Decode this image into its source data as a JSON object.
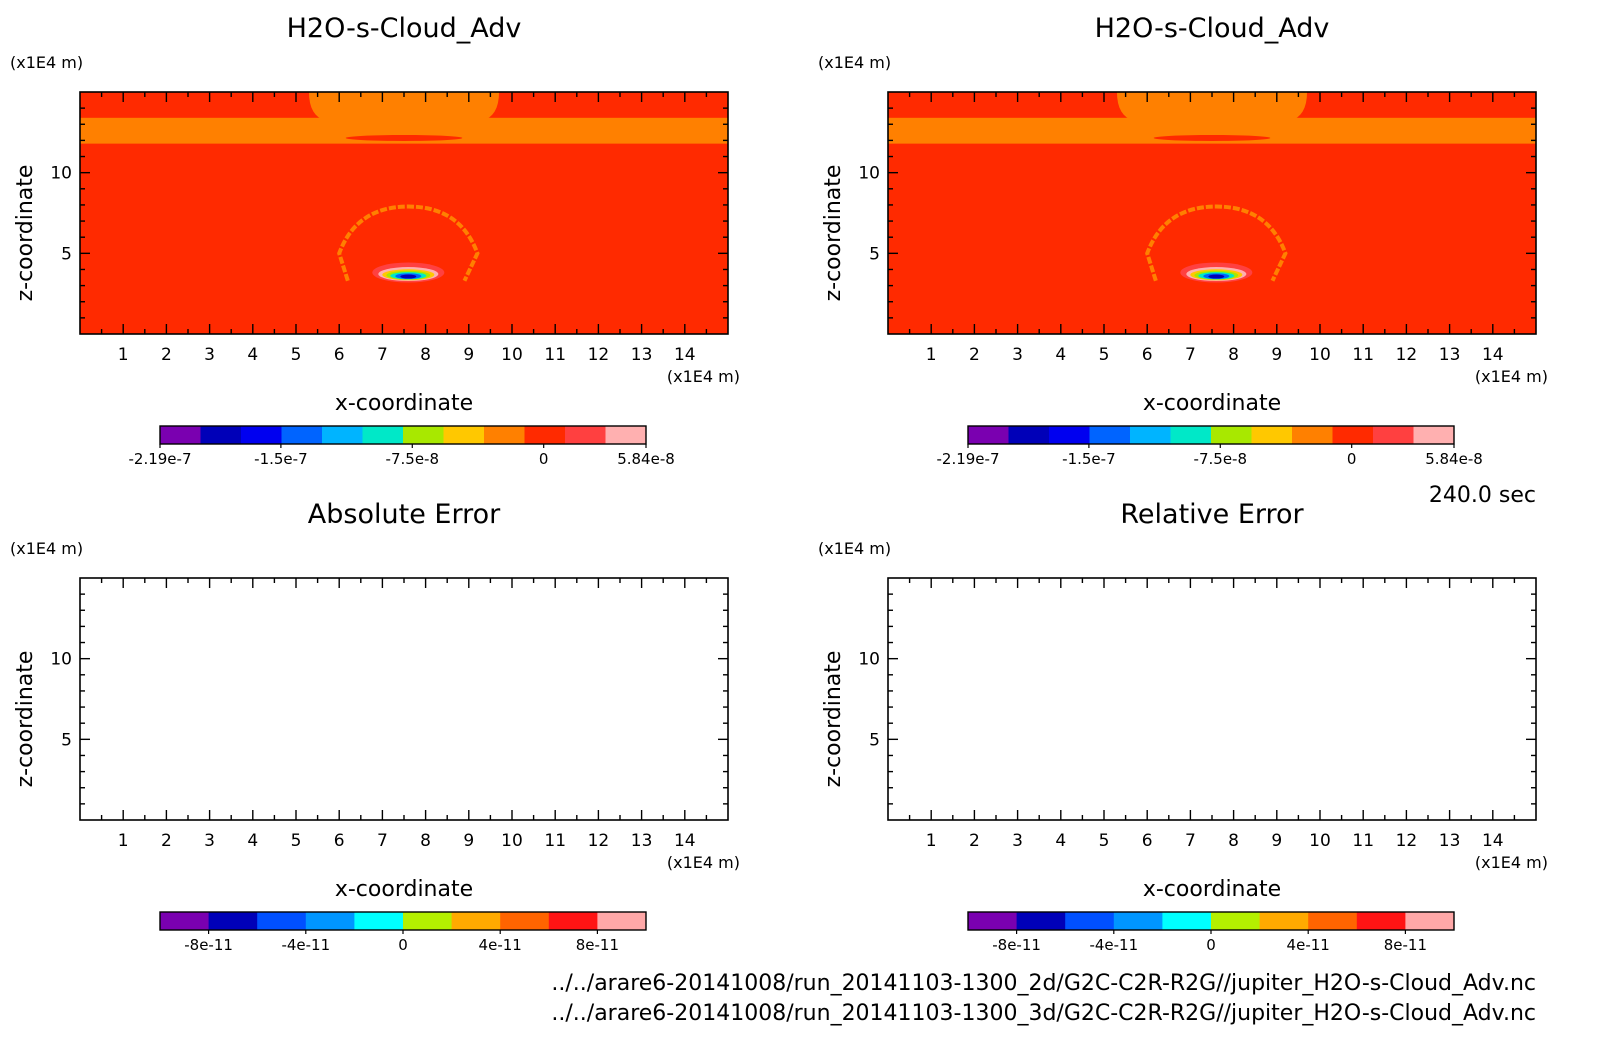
{
  "time_label": "240.0 sec",
  "file_paths": [
    "../../arare6-20141008/run_20141103-1300_2d/G2C-C2R-R2G//jupiter_H2O-s-Cloud_Adv.nc",
    "../../arare6-20141008/run_20141103-1300_3d/G2C-C2R-R2G//jupiter_H2O-s-Cloud_Adv.nc"
  ],
  "colors": {
    "background_field": "#ff2a00",
    "orange_band": "#ff8000",
    "frame": "#000000"
  },
  "chart_data": [
    {
      "type": "heatmap",
      "title": "H2O-s-Cloud_Adv",
      "xlabel": "x-coordinate",
      "ylabel": "z-coordinate",
      "x_unit": "(x1E4 m)",
      "y_unit": "(x1E4 m)",
      "xlim": [
        0,
        15
      ],
      "ylim": [
        0,
        15
      ],
      "x_ticks": [
        "1",
        "2",
        "3",
        "4",
        "5",
        "6",
        "7",
        "8",
        "9",
        "10",
        "11",
        "12",
        "13",
        "14"
      ],
      "y_ticks": [
        "5",
        "10"
      ],
      "colorbar": {
        "tick_labels": [
          "-2.19e-7",
          "-1.5e-7",
          "-7.5e-8",
          "0",
          "5.84e-8"
        ],
        "tick_values": [
          -2.19e-07,
          -1.5e-07,
          -7.5e-08,
          0,
          5.84e-08
        ],
        "range": [
          -2.19e-07,
          5.84e-08
        ],
        "colors": [
          "#7a00b0",
          "#0000b8",
          "#0000f0",
          "#0064ff",
          "#00b4ff",
          "#00e8c8",
          "#a8e800",
          "#ffc800",
          "#ff8000",
          "#ff2a00",
          "#ff4040",
          "#ffb0b0"
        ]
      }
    },
    {
      "type": "heatmap",
      "title": "H2O-s-Cloud_Adv",
      "xlabel": "x-coordinate",
      "ylabel": "z-coordinate",
      "x_unit": "(x1E4 m)",
      "y_unit": "(x1E4 m)",
      "xlim": [
        0,
        15
      ],
      "ylim": [
        0,
        15
      ],
      "x_ticks": [
        "1",
        "2",
        "3",
        "4",
        "5",
        "6",
        "7",
        "8",
        "9",
        "10",
        "11",
        "12",
        "13",
        "14"
      ],
      "y_ticks": [
        "5",
        "10"
      ],
      "colorbar": {
        "tick_labels": [
          "-2.19e-7",
          "-1.5e-7",
          "-7.5e-8",
          "0",
          "5.84e-8"
        ],
        "tick_values": [
          -2.19e-07,
          -1.5e-07,
          -7.5e-08,
          0,
          5.84e-08
        ],
        "range": [
          -2.19e-07,
          5.84e-08
        ],
        "colors": [
          "#7a00b0",
          "#0000b8",
          "#0000f0",
          "#0064ff",
          "#00b4ff",
          "#00e8c8",
          "#a8e800",
          "#ffc800",
          "#ff8000",
          "#ff2a00",
          "#ff4040",
          "#ffb0b0"
        ]
      }
    },
    {
      "type": "heatmap",
      "title": "Absolute Error",
      "xlabel": "x-coordinate",
      "ylabel": "z-coordinate",
      "x_unit": "(x1E4 m)",
      "y_unit": "(x1E4 m)",
      "xlim": [
        0,
        15
      ],
      "ylim": [
        0,
        15
      ],
      "x_ticks": [
        "1",
        "2",
        "3",
        "4",
        "5",
        "6",
        "7",
        "8",
        "9",
        "10",
        "11",
        "12",
        "13",
        "14"
      ],
      "y_ticks": [
        "5",
        "10"
      ],
      "colorbar": {
        "tick_labels": [
          "-8e-11",
          "-4e-11",
          "0",
          "4e-11",
          "8e-11"
        ],
        "tick_values": [
          -8e-11,
          -4e-11,
          0,
          4e-11,
          8e-11
        ],
        "range": [
          -1e-10,
          1e-10
        ],
        "colors": [
          "#7a00b0",
          "#0000b8",
          "#0050ff",
          "#0096ff",
          "#00ffff",
          "#b4f000",
          "#ffaa00",
          "#ff6400",
          "#ff1414",
          "#ffa8a8"
        ]
      }
    },
    {
      "type": "heatmap",
      "title": "Relative Error",
      "xlabel": "x-coordinate",
      "ylabel": "z-coordinate",
      "x_unit": "(x1E4 m)",
      "y_unit": "(x1E4 m)",
      "xlim": [
        0,
        15
      ],
      "ylim": [
        0,
        15
      ],
      "x_ticks": [
        "1",
        "2",
        "3",
        "4",
        "5",
        "6",
        "7",
        "8",
        "9",
        "10",
        "11",
        "12",
        "13",
        "14"
      ],
      "y_ticks": [
        "5",
        "10"
      ],
      "colorbar": {
        "tick_labels": [
          "-8e-11",
          "-4e-11",
          "0",
          "4e-11",
          "8e-11"
        ],
        "tick_values": [
          -8e-11,
          -4e-11,
          0,
          4e-11,
          8e-11
        ],
        "range": [
          -1e-10,
          1e-10
        ],
        "colors": [
          "#7a00b0",
          "#0000b8",
          "#0050ff",
          "#0096ff",
          "#00ffff",
          "#b4f000",
          "#ffaa00",
          "#ff6400",
          "#ff1414",
          "#ffa8a8"
        ]
      }
    }
  ]
}
